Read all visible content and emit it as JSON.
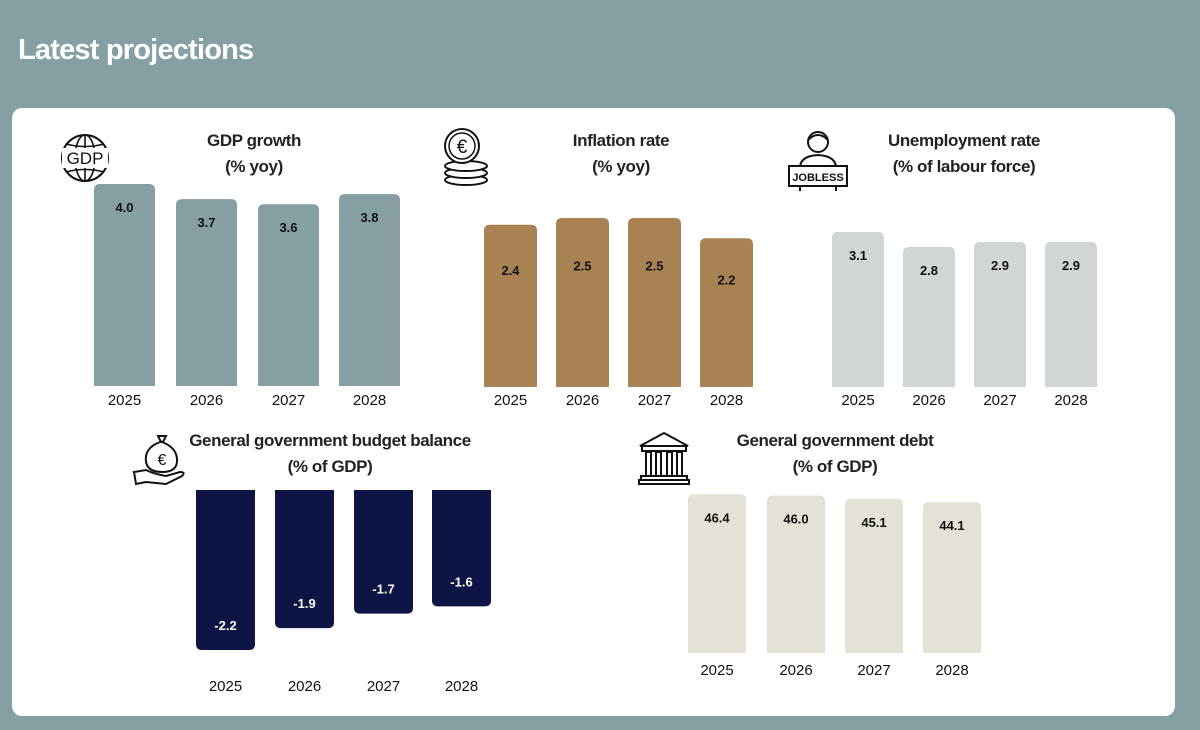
{
  "page": {
    "title": "Latest projections"
  },
  "colors": {
    "header_bg": "#869fa2",
    "panel_bg": "#ffffff",
    "gdp": "#869fa2",
    "inflation": "#a88253",
    "unemployment": "#cfd6d3",
    "balance": "#0e1444",
    "debt": "#e6e1d7"
  },
  "icons": {
    "gdp": "globe-gdp-icon",
    "inflation": "euro-coins-icon",
    "unemployment": "jobless-person-icon",
    "balance": "euro-moneybag-hand-icon",
    "debt": "government-building-icon"
  },
  "icon_text": {
    "gdp": "GDP",
    "jobless": "JOBLESS"
  },
  "chart_data": [
    {
      "id": "gdp",
      "type": "bar",
      "title_line1": "GDP growth",
      "title_line2": "(% yoy)",
      "categories": [
        "2025",
        "2026",
        "2027",
        "2028"
      ],
      "values": [
        4.0,
        3.7,
        3.6,
        3.8
      ],
      "labels": [
        "4.0",
        "3.7",
        "3.6",
        "3.8"
      ],
      "color": "#869fa2",
      "label_color": "#111111"
    },
    {
      "id": "inflation",
      "type": "bar",
      "title_line1": "Inflation rate",
      "title_line2": "(% yoy)",
      "categories": [
        "2025",
        "2026",
        "2027",
        "2028"
      ],
      "values": [
        2.4,
        2.5,
        2.5,
        2.2
      ],
      "labels": [
        "2.4",
        "2.5",
        "2.5",
        "2.2"
      ],
      "color": "#a88253",
      "label_color": "#111111"
    },
    {
      "id": "unemployment",
      "type": "bar",
      "title_line1": "Unemployment rate",
      "title_line2": "(% of labour force)",
      "categories": [
        "2025",
        "2026",
        "2027",
        "2028"
      ],
      "values": [
        3.1,
        2.8,
        2.9,
        2.9
      ],
      "labels": [
        "3.1",
        "2.8",
        "2.9",
        "2.9"
      ],
      "color": "#cfd6d3",
      "label_color": "#111111"
    },
    {
      "id": "balance",
      "type": "bar",
      "title_line1": "General government budget balance",
      "title_line2": "(% of GDP)",
      "categories": [
        "2025",
        "2026",
        "2027",
        "2028"
      ],
      "values": [
        -2.2,
        -1.9,
        -1.7,
        -1.6
      ],
      "labels": [
        "-2.2",
        "-1.9",
        "-1.7",
        "-1.6"
      ],
      "color": "#0e1444",
      "label_color": "#ffffff"
    },
    {
      "id": "debt",
      "type": "bar",
      "title_line1": "General government debt",
      "title_line2": "(% of GDP)",
      "categories": [
        "2025",
        "2026",
        "2027",
        "2028"
      ],
      "values": [
        46.4,
        46.0,
        45.1,
        44.1
      ],
      "labels": [
        "46.4",
        "46.0",
        "45.1",
        "44.1"
      ],
      "color": "#e6e1d7",
      "label_color": "#111111"
    }
  ]
}
